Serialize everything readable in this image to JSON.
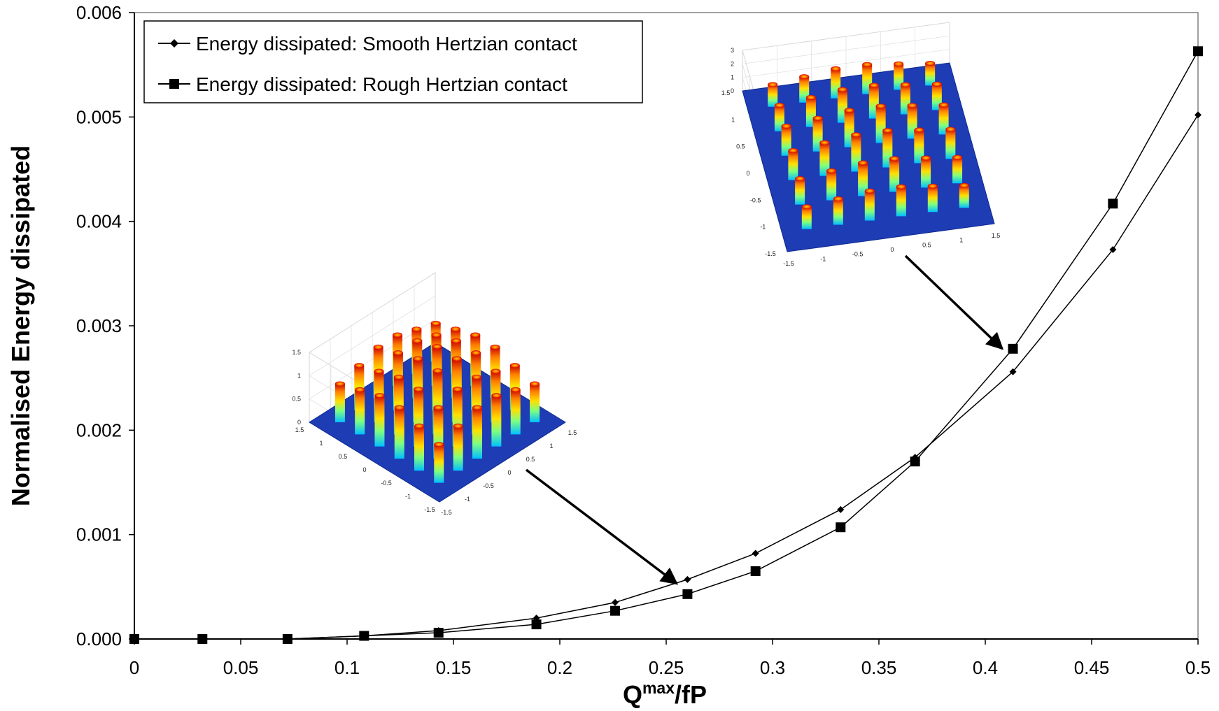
{
  "chart_data": {
    "type": "line",
    "xlabel": "Q",
    "xlabel_sup": "max",
    "xlabel_suffix": "/fP",
    "ylabel": "Normalised Energy dissipated",
    "xlim": [
      0,
      0.5
    ],
    "ylim": [
      0,
      0.006
    ],
    "x_ticks": [
      "0",
      "0.05",
      "0.1",
      "0.15",
      "0.2",
      "0.25",
      "0.3",
      "0.35",
      "0.4",
      "0.45",
      "0.5"
    ],
    "y_ticks": [
      "0.000",
      "0.001",
      "0.002",
      "0.003",
      "0.004",
      "0.005",
      "0.006"
    ],
    "grid": false,
    "legend_position": "top-left",
    "series": [
      {
        "name": "Energy dissipated: Smooth Hertzian contact",
        "marker": "diamond",
        "x": [
          0,
          0.032,
          0.072,
          0.108,
          0.143,
          0.189,
          0.226,
          0.26,
          0.292,
          0.332,
          0.367,
          0.413,
          0.46,
          0.5
        ],
        "y": [
          0.0,
          0.0,
          0.0,
          3e-05,
          8e-05,
          0.0002,
          0.00035,
          0.00057,
          0.00082,
          0.00124,
          0.00174,
          0.00256,
          0.00373,
          0.00502
        ]
      },
      {
        "name": "Energy dissipated: Rough Hertzian contact",
        "marker": "square",
        "x": [
          0,
          0.032,
          0.072,
          0.108,
          0.143,
          0.189,
          0.226,
          0.26,
          0.292,
          0.332,
          0.367,
          0.413,
          0.46,
          0.5
        ],
        "y": [
          0.0,
          0.0,
          0.0,
          3e-05,
          6e-05,
          0.00014,
          0.00027,
          0.00043,
          0.00065,
          0.00107,
          0.0017,
          0.00278,
          0.00417,
          0.00563
        ]
      }
    ],
    "annotations": [
      {
        "type": "inset-3d-surface",
        "points_to": [
          0.255,
          0.00053
        ],
        "x_ticks": [
          "-1.5",
          "-1",
          "-0.5",
          "0",
          "0.5",
          "1",
          "1.5"
        ],
        "y_ticks": [
          "-1.5",
          "-1",
          "-0.5",
          "0",
          "0.5",
          "1",
          "1.5"
        ],
        "z_ticks": [
          "0",
          "0.5",
          "1",
          "1.5"
        ]
      },
      {
        "type": "inset-3d-surface",
        "points_to": [
          0.408,
          0.00278
        ],
        "x_ticks": [
          "-1.5",
          "-1",
          "-0.5",
          "0",
          "0.5",
          "1",
          "1.5"
        ],
        "y_ticks": [
          "-1.5",
          "-1",
          "-0.5",
          "0",
          "0.5",
          "1",
          "1.5"
        ],
        "z_ticks": [
          "0",
          "1",
          "2",
          "3"
        ]
      }
    ]
  }
}
